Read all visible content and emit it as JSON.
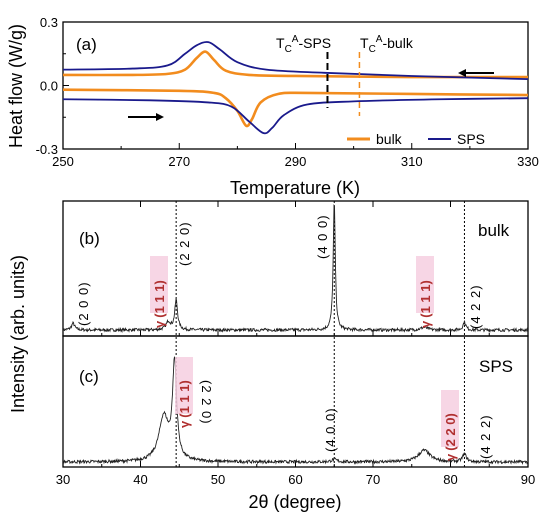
{
  "panels": [
    "(a)",
    "(b)",
    "(c)"
  ],
  "dsc": {
    "ylabel": "Heat flow (W/g)",
    "xlabel": "Temperature (K)",
    "xlim": [
      250,
      330
    ],
    "ylim": [
      -0.3,
      0.3
    ],
    "xticks": [
      "250",
      "270",
      "290",
      "310",
      "330"
    ],
    "yticks": [
      "0.3",
      "0.0",
      "-0.3"
    ],
    "tc_sps": {
      "label_T": "T",
      "label_sub": "C",
      "label_sup": "A",
      "label_rest": "-SPS",
      "value": 295.5,
      "color": "#000000"
    },
    "tc_bulk": {
      "label_T": "T",
      "label_sub": "C",
      "label_sup": "A",
      "label_rest": "-bulk",
      "value": 301,
      "color": "#f28c1e"
    },
    "legend": [
      {
        "name": "bulk",
        "color": "#f28c1e"
      },
      {
        "name": "SPS",
        "color": "#1a1a8c"
      }
    ]
  },
  "xrd": {
    "ylabel": "Intensity (arb. units)",
    "xlabel": "2θ (degree)",
    "xlim": [
      30,
      90
    ],
    "xticks": [
      "30",
      "40",
      "50",
      "60",
      "70",
      "80",
      "90"
    ],
    "ref_lines": [
      44.6,
      65.0,
      81.8
    ],
    "bulk_label": "bulk",
    "sps_label": "SPS",
    "bulk_peaks": [
      "(2 0 0)",
      "(2 2 0)",
      "(4 0 0)",
      "(4 2 2)"
    ],
    "bulk_gamma": [
      {
        "greek": "γ",
        "hkl": "(1 1 1)"
      },
      {
        "greek": "γ",
        "hkl": "(1 1 1)"
      }
    ],
    "sps_peaks": [
      "(2 2 0)",
      "(4 0 0)",
      "(4 2 2)"
    ],
    "sps_gamma": [
      {
        "greek": "γ",
        "hkl": "(1 1 1)"
      },
      {
        "greek": "γ",
        "hkl": "(2 2 0)"
      }
    ]
  },
  "chart_data": [
    {
      "type": "line",
      "xlabel": "Temperature (K)",
      "ylabel": "Heat flow (W/g)",
      "xlim": [
        250,
        330
      ],
      "ylim": [
        -0.3,
        0.3
      ],
      "series": [
        {
          "name": "bulk",
          "color": "#f28c1e",
          "x": [
            250,
            262,
            268,
            271,
            273,
            274.5,
            276,
            278,
            282,
            290,
            310,
            330
          ],
          "y": [
            0.05,
            0.05,
            0.055,
            0.075,
            0.13,
            0.16,
            0.12,
            0.07,
            0.05,
            0.045,
            0.04,
            0.04
          ]
        },
        {
          "name": "bulk",
          "color": "#f28c1e",
          "x": [
            250,
            270,
            276,
            278,
            280,
            281.5,
            282.5,
            284,
            287,
            292,
            310,
            330
          ],
          "y": [
            -0.02,
            -0.025,
            -0.035,
            -0.06,
            -0.12,
            -0.19,
            -0.16,
            -0.08,
            -0.04,
            -0.035,
            -0.04,
            -0.045
          ]
        },
        {
          "name": "SPS",
          "color": "#1a1a8c",
          "x": [
            250,
            262,
            268,
            271,
            273,
            275,
            277,
            280,
            285,
            295,
            310,
            330
          ],
          "y": [
            0.075,
            0.08,
            0.095,
            0.15,
            0.19,
            0.205,
            0.17,
            0.11,
            0.075,
            0.06,
            0.045,
            0.03
          ]
        },
        {
          "name": "SPS",
          "color": "#1a1a8c",
          "x": [
            250,
            265,
            275,
            279,
            282,
            284.5,
            286,
            288,
            292,
            300,
            315,
            330
          ],
          "y": [
            -0.065,
            -0.07,
            -0.08,
            -0.1,
            -0.17,
            -0.225,
            -0.2,
            -0.14,
            -0.09,
            -0.075,
            -0.065,
            -0.06
          ]
        }
      ]
    },
    {
      "type": "line",
      "xlabel": "2θ (degree)",
      "ylabel": "Intensity (arb. units)",
      "xlim": [
        30,
        90
      ],
      "series": [
        {
          "name": "bulk",
          "color": "#000000",
          "peaks_x": [
            31.3,
            43.6,
            44.6,
            65.0,
            76.6,
            81.8
          ],
          "peaks_rel_intensity": [
            0.05,
            0.06,
            0.22,
            0.95,
            0.02,
            0.06
          ]
        },
        {
          "name": "SPS",
          "color": "#000000",
          "peaks_x": [
            43.0,
            44.4,
            65.0,
            76.6,
            81.8
          ],
          "peaks_rel_intensity": [
            0.34,
            0.73,
            0.02,
            0.09,
            0.06
          ]
        }
      ]
    }
  ]
}
